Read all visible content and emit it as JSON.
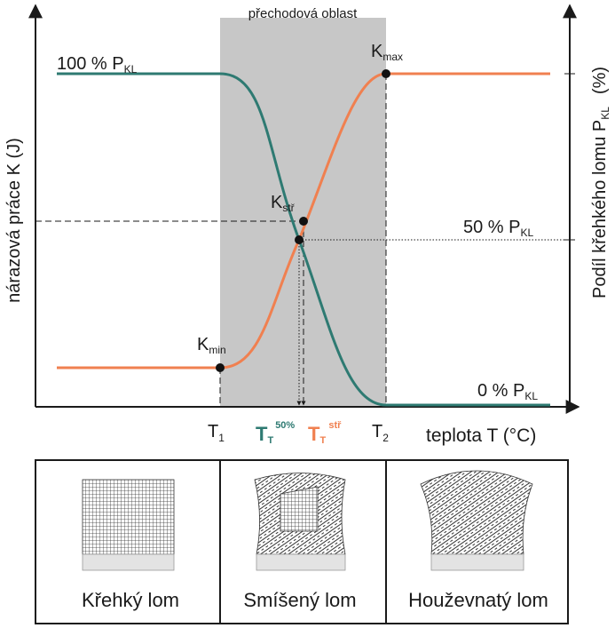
{
  "colors": {
    "teal": "#2e7a72",
    "orange": "#f08050",
    "band": "#c7c7c7",
    "axis": "#1a1a1a",
    "hatch": "#333333",
    "base": "#e3e3e3"
  },
  "chart": {
    "y_left_label": "nárazová práce K (J)",
    "y_right_label": "Podíl křehkého lomu P",
    "y_right_label_sub": "KL",
    "y_right_label_unit": "(%)",
    "x_label": "teplota T (°C)",
    "band_label": "přechodová oblast",
    "level_100": "100 % P",
    "level_50": "50 % P",
    "level_0": "0 % P",
    "level_sub": "KL",
    "k_max": "K",
    "k_max_sub": "max",
    "k_min": "K",
    "k_min_sub": "min",
    "k_str": "K",
    "k_str_sub": "stř",
    "t1": "T",
    "t1_sub": "1",
    "t2": "T",
    "t2_sub": "2",
    "tt50": "T",
    "tt50_sub": "T",
    "tt50_sup": "50%",
    "ttstr": "T",
    "ttstr_sub": "T",
    "ttstr_sup": "stř"
  },
  "fractures": {
    "brittle_label": "Křehký lom",
    "mixed_label": "Smíšený lom",
    "ductile_label": "Houževnatý lom"
  }
}
